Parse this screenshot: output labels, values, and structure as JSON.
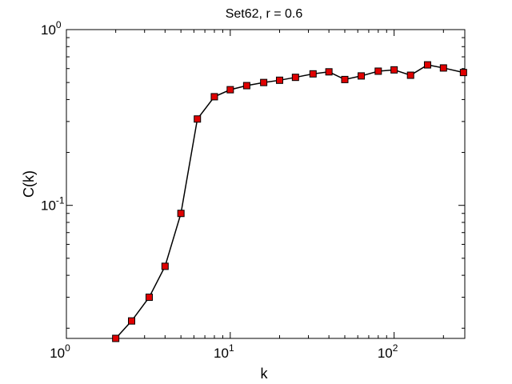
{
  "chart_data": {
    "type": "line",
    "title": "Set62, r = 0.6",
    "xlabel": "k",
    "ylabel": "C(k)",
    "xscale": "log",
    "yscale": "log",
    "xlim": [
      1,
      270
    ],
    "ylim": [
      0.0175,
      1
    ],
    "grid": false,
    "legend": "none",
    "x_ticks": [
      {
        "value": 1,
        "base": "10",
        "exp": "0"
      },
      {
        "value": 10,
        "base": "10",
        "exp": "1"
      },
      {
        "value": 100,
        "base": "10",
        "exp": "2"
      }
    ],
    "y_ticks": [
      {
        "value": 0.1,
        "base": "10",
        "exp": "-1"
      },
      {
        "value": 1,
        "base": "10",
        "exp": "0"
      }
    ],
    "series": [
      {
        "marker": "square",
        "line_color": "#000000",
        "marker_color": "#e00000",
        "x": [
          2.0,
          2.5,
          3.2,
          4.0,
          5.0,
          6.3,
          8.0,
          10.0,
          12.6,
          16.0,
          20.0,
          25.0,
          32.0,
          40.0,
          50.0,
          63.0,
          80.0,
          100.0,
          126.0,
          160.0,
          200.0,
          265.0
        ],
        "y": [
          0.0175,
          0.022,
          0.03,
          0.045,
          0.09,
          0.31,
          0.415,
          0.455,
          0.48,
          0.5,
          0.515,
          0.535,
          0.56,
          0.575,
          0.52,
          0.545,
          0.58,
          0.59,
          0.55,
          0.63,
          0.605,
          0.57
        ]
      }
    ]
  }
}
